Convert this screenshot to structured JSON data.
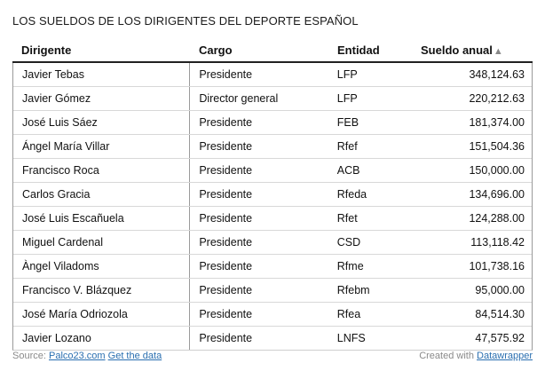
{
  "title": "LOS SUELDOS DE LOS DIRIGENTES DEL DEPORTE ESPAÑOL",
  "columns": [
    "Dirigente",
    "Cargo",
    "Entidad",
    "Sueldo anual"
  ],
  "sort": {
    "column": "Sueldo anual",
    "indicator": "▲"
  },
  "rows": [
    [
      "Javier Tebas",
      "Presidente",
      "LFP",
      "348,124.63"
    ],
    [
      "Javier Gómez",
      "Director general",
      "LFP",
      "220,212.63"
    ],
    [
      "José Luis Sáez",
      "Presidente",
      "FEB",
      "181,374.00"
    ],
    [
      "Ángel María Villar",
      "Presidente",
      "Rfef",
      "151,504.36"
    ],
    [
      "Francisco Roca",
      "Presidente",
      "ACB",
      "150,000.00"
    ],
    [
      "Carlos Gracia",
      "Presidente",
      "Rfeda",
      "134,696.00"
    ],
    [
      "José Luis Escañuela",
      "Presidente",
      "Rfet",
      "124,288.00"
    ],
    [
      "Miguel Cardenal",
      "Presidente",
      "CSD",
      "113,118.42"
    ],
    [
      "Àngel Viladoms",
      "Presidente",
      "Rfme",
      "101,738.16"
    ],
    [
      "Francisco V. Blázquez",
      "Presidente",
      "Rfebm",
      "95,000.00"
    ],
    [
      "José María Odriozola",
      "Presidente",
      "Rfea",
      "84,514.30"
    ],
    [
      "Javier Lozano",
      "Presidente",
      "LNFS",
      "47,575.92"
    ]
  ],
  "footer": {
    "source_label": "Source:",
    "source_link": "Palco23.com",
    "data_link": "Get the data",
    "created_label": "Created with",
    "created_link": "Datawrapper"
  },
  "colors": {
    "link": "#2a6fb0",
    "muted": "#8a8a8a",
    "header_rule": "#222222"
  }
}
